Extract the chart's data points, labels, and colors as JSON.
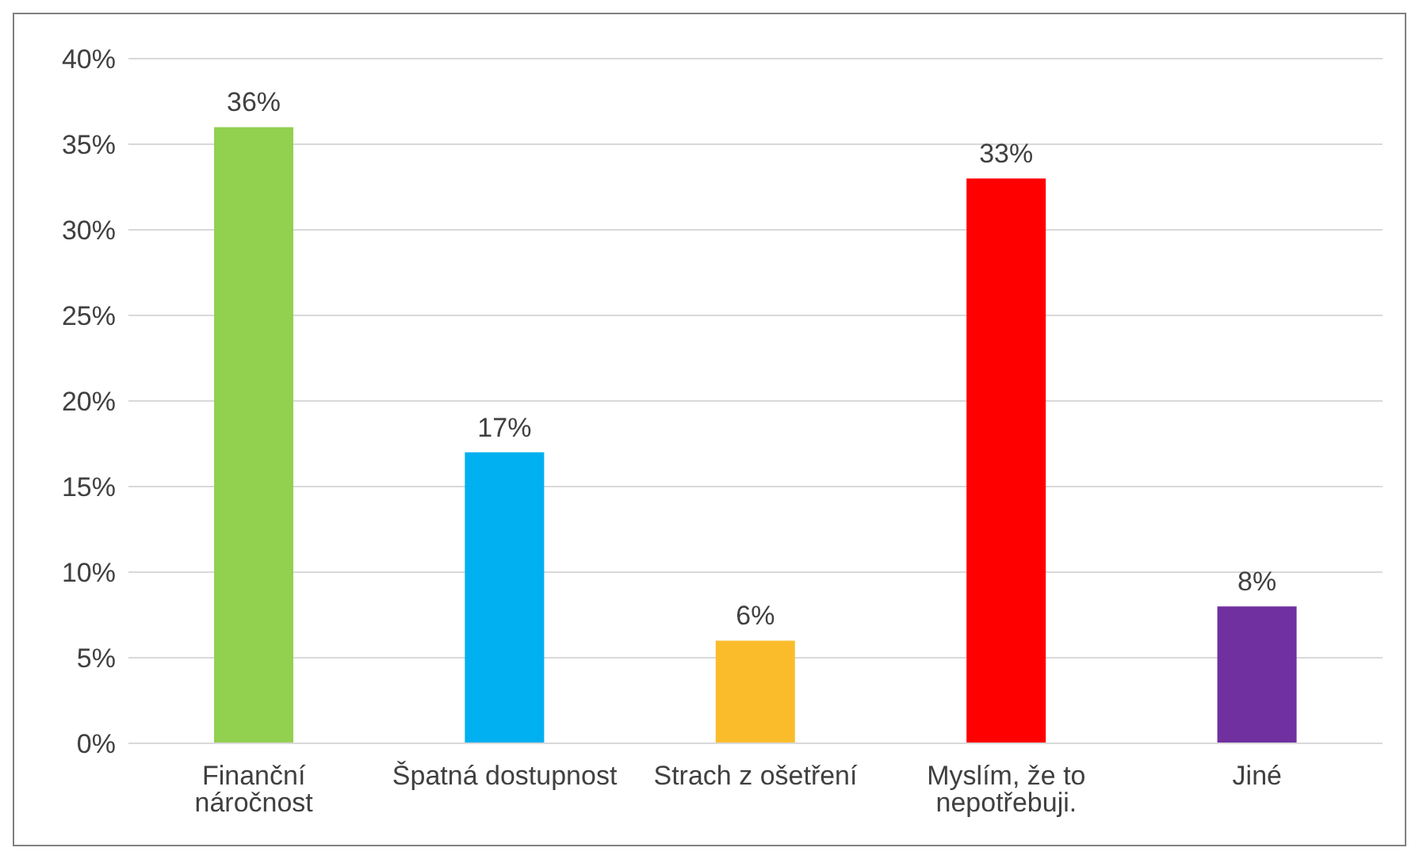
{
  "chart_data": {
    "type": "bar",
    "categories": [
      "Finanční náročnost",
      "Špatná dostupnost",
      "Strach z ošetření",
      "Myslím, že to nepotřebuji.",
      "Jiné"
    ],
    "values": [
      36,
      17,
      6,
      33,
      8
    ],
    "colors": [
      "#92d050",
      "#00b0f0",
      "#fbbc2c",
      "#ff0000",
      "#7030a0"
    ],
    "ylim": [
      0,
      40
    ],
    "yticks": [
      {
        "value": 0,
        "label": "0%"
      },
      {
        "value": 5,
        "label": "5%"
      },
      {
        "value": 10,
        "label": "10%"
      },
      {
        "value": 15,
        "label": "15%"
      },
      {
        "value": 20,
        "label": "20%"
      },
      {
        "value": 25,
        "label": "25%"
      },
      {
        "value": 30,
        "label": "30%"
      },
      {
        "value": 35,
        "label": "35%"
      },
      {
        "value": 40,
        "label": "40%"
      }
    ],
    "value_labels": [
      "36%",
      "17%",
      "6%",
      "33%",
      "8%"
    ],
    "grid": "y",
    "legend": false
  }
}
